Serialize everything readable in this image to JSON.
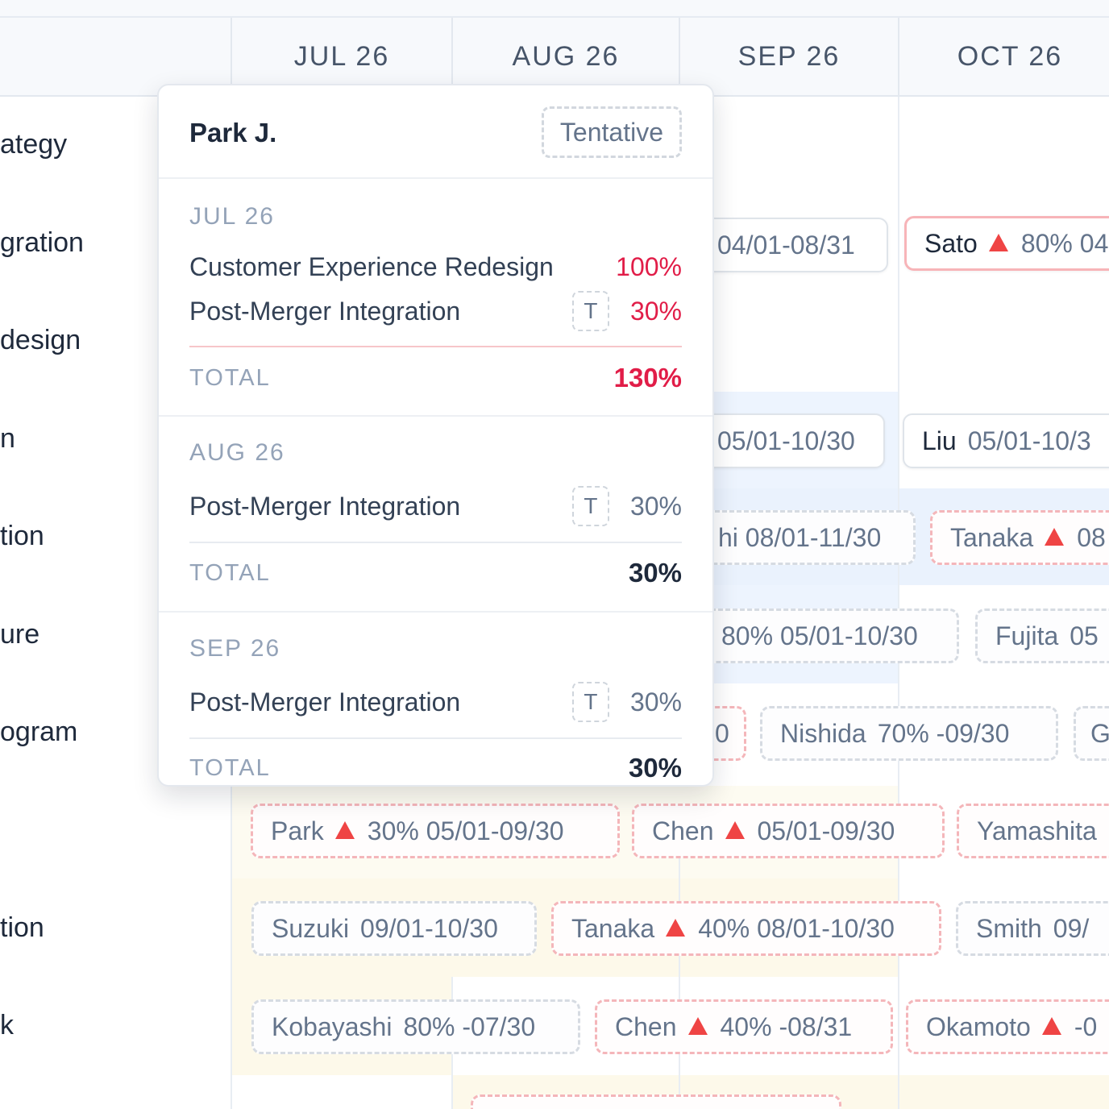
{
  "timeline": {
    "months": [
      "JUL 26",
      "AUG 26",
      "SEP 26",
      "OCT 26"
    ]
  },
  "rows": [
    {
      "label": "ategy"
    },
    {
      "label": "gration"
    },
    {
      "label": "design"
    },
    {
      "label": "n"
    },
    {
      "label": "tion"
    },
    {
      "label": "ure"
    },
    {
      "label": "ogram"
    },
    {
      "label": ""
    },
    {
      "label": "tion"
    },
    {
      "label": "k"
    }
  ],
  "chips": [
    {
      "name": "",
      "warn": false,
      "text": "04/01-08/31"
    },
    {
      "name": "Sato",
      "warn": true,
      "text": "80% 04"
    },
    {
      "name": "",
      "warn": false,
      "text": "05/01-10/30"
    },
    {
      "name": "Liu",
      "warn": false,
      "text": "05/01-10/3"
    },
    {
      "name": "",
      "warn": false,
      "text": "hi 08/01-11/30"
    },
    {
      "name": "Tanaka",
      "warn": true,
      "text": "08"
    },
    {
      "name": "",
      "warn": false,
      "text": "80% 05/01-10/30"
    },
    {
      "name": "Fujita",
      "warn": false,
      "text": "05"
    },
    {
      "name": "",
      "warn": false,
      "text": "0"
    },
    {
      "name": "Nishida",
      "warn": false,
      "text": "70% -09/30"
    },
    {
      "name": "",
      "warn": false,
      "text": "G"
    },
    {
      "name": "Park",
      "warn": true,
      "text": "30% 05/01-09/30"
    },
    {
      "name": "Chen",
      "warn": true,
      "text": "05/01-09/30"
    },
    {
      "name": "Yamashita",
      "warn": false,
      "text": ""
    },
    {
      "name": "Suzuki",
      "warn": false,
      "text": "09/01-10/30"
    },
    {
      "name": "Tanaka",
      "warn": true,
      "text": "40% 08/01-10/30"
    },
    {
      "name": "Smith",
      "warn": false,
      "text": "09/"
    },
    {
      "name": "Kobayashi",
      "warn": false,
      "text": "80% -07/30"
    },
    {
      "name": "Chen",
      "warn": true,
      "text": "40% -08/31"
    },
    {
      "name": "Okamoto",
      "warn": true,
      "text": "-0"
    }
  ],
  "tooltip": {
    "name": "Park J.",
    "badge": "Tentative",
    "sections": [
      {
        "month": "JUL 26",
        "lines": [
          {
            "project": "Customer Experience Redesign",
            "tag": "",
            "pct": "100%",
            "color": "#e11d48"
          },
          {
            "project": "Post-Merger Integration",
            "tag": "T",
            "pct": "30%",
            "color": "#e11d48"
          }
        ],
        "total_label": "TOTAL",
        "total": "130%",
        "total_color": "#e11d48"
      },
      {
        "month": "AUG 26",
        "lines": [
          {
            "project": "Post-Merger Integration",
            "tag": "T",
            "pct": "30%",
            "color": "#64748b"
          }
        ],
        "total_label": "TOTAL",
        "total": "30%",
        "total_color": "#1e293b"
      },
      {
        "month": "SEP 26",
        "lines": [
          {
            "project": "Post-Merger Integration",
            "tag": "T",
            "pct": "30%",
            "color": "#64748b"
          }
        ],
        "total_label": "TOTAL",
        "total": "30%",
        "total_color": "#1e293b"
      }
    ]
  }
}
